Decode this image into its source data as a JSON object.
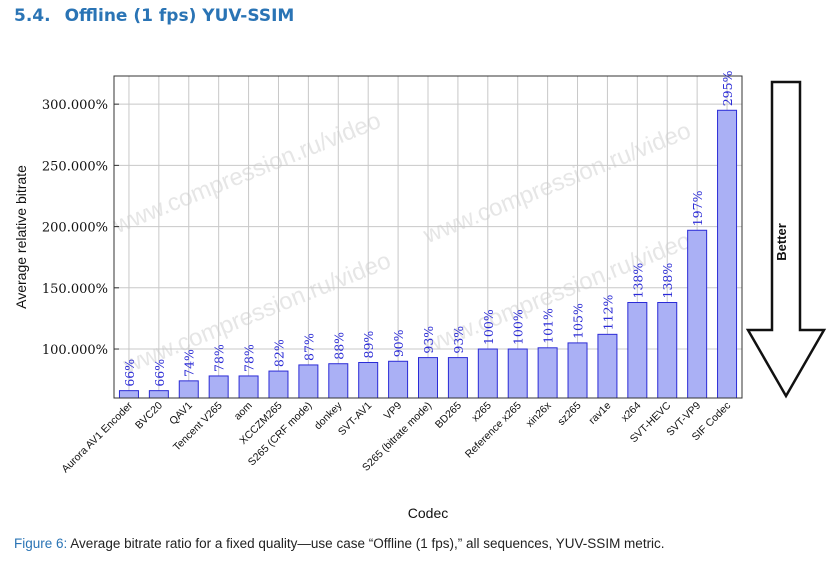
{
  "heading": {
    "number": "5.4.",
    "title": "Offline (1 fps) YUV-SSIM"
  },
  "caption": {
    "label": "Figure 6:",
    "text": "Average bitrate ratio for a fixed quality—use case “Offline (1 fps),” all sequences, YUV-SSIM metric."
  },
  "watermark": "www.compression.ru/video",
  "arrow_label": "Better",
  "colors": {
    "bar_fill": "#aab0f5",
    "bar_stroke": "#2b2bd6",
    "label": "#2b2bd6",
    "heading": "#2a74b5"
  },
  "chart_data": {
    "type": "bar",
    "xlabel": "Codec",
    "ylabel": "Average relative bitrate",
    "ylim": [
      60,
      323
    ],
    "y_ticks": [
      100,
      150,
      200,
      250,
      300
    ],
    "y_tick_labels": [
      "100.000%",
      "150.000%",
      "200.000%",
      "250.000%",
      "300.000%"
    ],
    "grid": true,
    "categories": [
      "Aurora AV1 Encoder",
      "BVC20",
      "QAV1",
      "Tencent V265",
      "aom",
      "XCCZM265",
      "S265 (CRF mode)",
      "donkey",
      "SVT-AV1",
      "VP9",
      "S265 (bitrate mode)",
      "BD265",
      "x265",
      "Reference x265",
      "xin26x",
      "sz265",
      "rav1e",
      "x264",
      "SVT-HEVC",
      "SVT-VP9",
      "SIF Codec"
    ],
    "values": [
      66,
      66,
      74,
      78,
      78,
      82,
      87,
      88,
      89,
      90,
      93,
      93,
      100,
      100,
      101,
      105,
      112,
      138,
      138,
      197,
      295
    ],
    "data_labels": [
      "66%",
      "66%",
      "74%",
      "78%",
      "78%",
      "82%",
      "87%",
      "88%",
      "89%",
      "90%",
      "93%",
      "93%",
      "100%",
      "100%",
      "101%",
      "105%",
      "112%",
      "138%",
      "138%",
      "197%",
      "295%"
    ]
  }
}
